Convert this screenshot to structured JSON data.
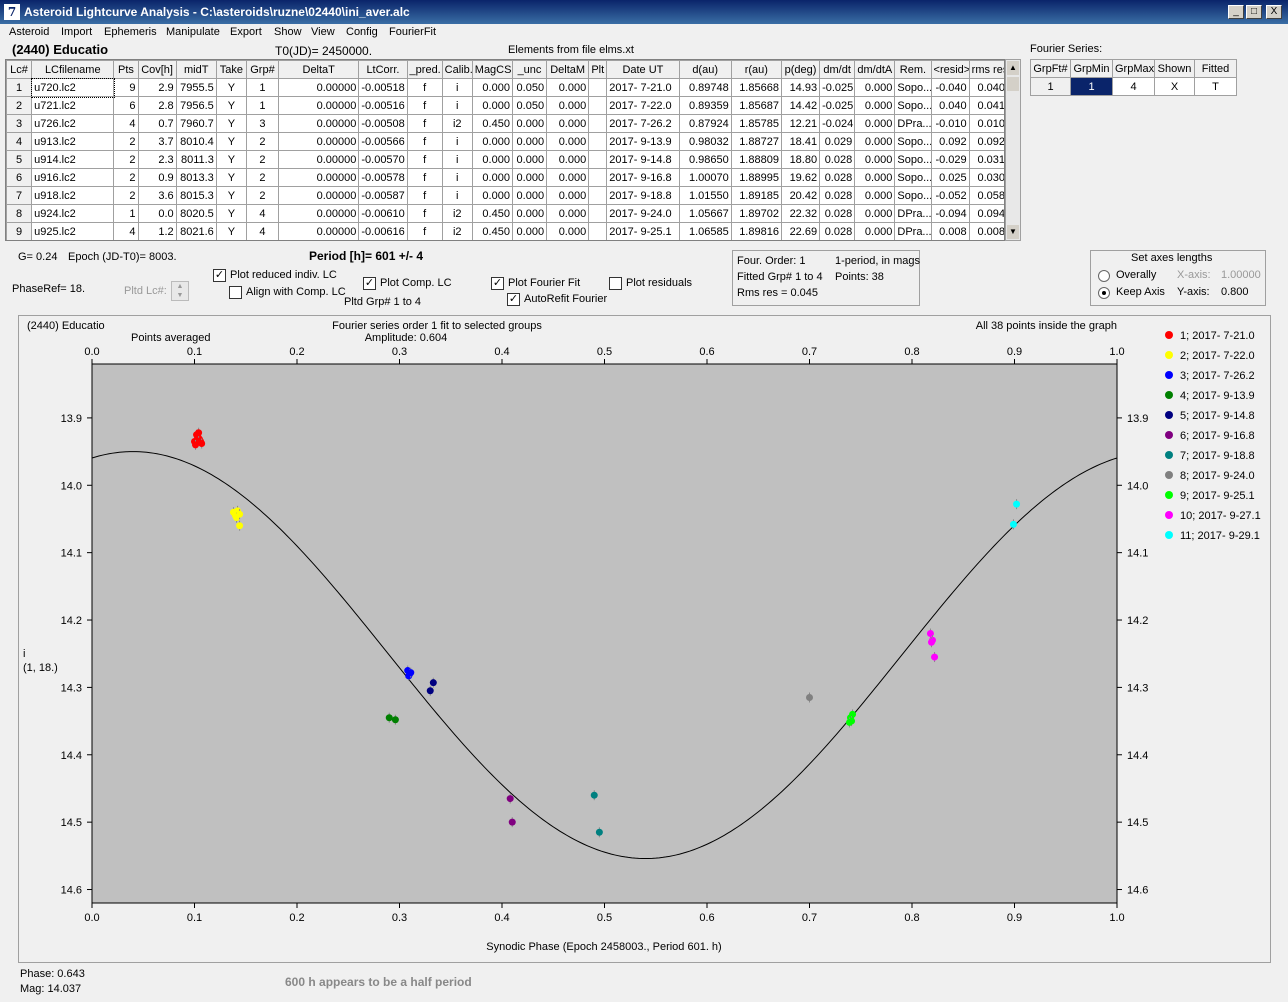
{
  "window": {
    "title": "Asteroid Lightcurve Analysis - C:\\asteroids\\ruzne\\02440\\ini_aver.alc",
    "min": "_",
    "max": "□",
    "close": "X"
  },
  "menu": [
    "Asteroid",
    "Import",
    "Ephemeris",
    "Manipulate",
    "Export",
    "Show",
    "View",
    "Config",
    "FourierFit"
  ],
  "header": {
    "asteroid": "(2440) Educatio",
    "t0": "T0(JD)= 2450000.",
    "elements": "Elements from file elms.xt"
  },
  "table": {
    "columns": [
      "Lc#",
      "LCfilename",
      "Pts",
      "Cov[h]",
      "midT",
      "Take",
      "Grp#",
      "DeltaT",
      "LtCorr.",
      "_pred.",
      "Calib.",
      "MagCS",
      "_unc",
      "DeltaM",
      "Plt",
      "Date UT",
      "d(au)",
      "r(au)",
      "p(deg)",
      "dm/dt",
      "dm/dtA",
      "Rem.",
      "<resid>",
      "rms res"
    ],
    "rows": [
      [
        "1",
        "u720.lc2",
        "9",
        "2.9",
        "7955.5",
        "Y",
        "1",
        "0.00000",
        "-0.00518",
        "f",
        "i",
        "0.000",
        "0.050",
        "0.000",
        "",
        "2017- 7-21.0",
        "0.89748",
        "1.85668",
        "14.93",
        "-0.025",
        "0.000",
        "Sopo...",
        "-0.040",
        "0.040"
      ],
      [
        "2",
        "u721.lc2",
        "6",
        "2.8",
        "7956.5",
        "Y",
        "1",
        "0.00000",
        "-0.00516",
        "f",
        "i",
        "0.000",
        "0.050",
        "0.000",
        "",
        "2017- 7-22.0",
        "0.89359",
        "1.85687",
        "14.42",
        "-0.025",
        "0.000",
        "Sopo...",
        "0.040",
        "0.041"
      ],
      [
        "3",
        "u726.lc2",
        "4",
        "0.7",
        "7960.7",
        "Y",
        "3",
        "0.00000",
        "-0.00508",
        "f",
        "i2",
        "0.450",
        "0.000",
        "0.000",
        "",
        "2017- 7-26.2",
        "0.87924",
        "1.85785",
        "12.21",
        "-0.024",
        "0.000",
        "DPra...",
        "-0.010",
        "0.010"
      ],
      [
        "4",
        "u913.lc2",
        "2",
        "3.7",
        "8010.4",
        "Y",
        "2",
        "0.00000",
        "-0.00566",
        "f",
        "i",
        "0.000",
        "0.000",
        "0.000",
        "",
        "2017- 9-13.9",
        "0.98032",
        "1.88727",
        "18.41",
        "0.029",
        "0.000",
        "Sopo...",
        "0.092",
        "0.092"
      ],
      [
        "5",
        "u914.lc2",
        "2",
        "2.3",
        "8011.3",
        "Y",
        "2",
        "0.00000",
        "-0.00570",
        "f",
        "i",
        "0.000",
        "0.000",
        "0.000",
        "",
        "2017- 9-14.8",
        "0.98650",
        "1.88809",
        "18.80",
        "0.028",
        "0.000",
        "Sopo...",
        "-0.029",
        "0.031"
      ],
      [
        "6",
        "u916.lc2",
        "2",
        "0.9",
        "8013.3",
        "Y",
        "2",
        "0.00000",
        "-0.00578",
        "f",
        "i",
        "0.000",
        "0.000",
        "0.000",
        "",
        "2017- 9-16.8",
        "1.00070",
        "1.88995",
        "19.62",
        "0.028",
        "0.000",
        "Sopo...",
        "0.025",
        "0.030"
      ],
      [
        "7",
        "u918.lc2",
        "2",
        "3.6",
        "8015.3",
        "Y",
        "2",
        "0.00000",
        "-0.00587",
        "f",
        "i",
        "0.000",
        "0.000",
        "0.000",
        "",
        "2017- 9-18.8",
        "1.01550",
        "1.89185",
        "20.42",
        "0.028",
        "0.000",
        "Sopo...",
        "-0.052",
        "0.058"
      ],
      [
        "8",
        "u924.lc2",
        "1",
        "0.0",
        "8020.5",
        "Y",
        "4",
        "0.00000",
        "-0.00610",
        "f",
        "i2",
        "0.450",
        "0.000",
        "0.000",
        "",
        "2017- 9-24.0",
        "1.05667",
        "1.89702",
        "22.32",
        "0.028",
        "0.000",
        "DPra...",
        "-0.094",
        "0.094"
      ],
      [
        "9",
        "u925.lc2",
        "4",
        "1.2",
        "8021.6",
        "Y",
        "4",
        "0.00000",
        "-0.00616",
        "f",
        "i2",
        "0.450",
        "0.000",
        "0.000",
        "",
        "2017- 9-25.1",
        "1.06585",
        "1.89816",
        "22.69",
        "0.028",
        "0.000",
        "DPra...",
        "0.008",
        "0.008"
      ]
    ]
  },
  "fourier_table": {
    "title": "Fourier Series:",
    "columns": [
      "GrpFt#",
      "GrpMin",
      "GrpMax",
      "Shown",
      "Fitted"
    ],
    "row": [
      "1",
      "1",
      "4",
      "X",
      "T"
    ]
  },
  "controls": {
    "g": "G= 0.24",
    "epoch": "Epoch (JD-T0)= 8003.",
    "period": "Period [h]= 601 +/- 4",
    "phaseref": "PhaseRef= 18.",
    "pltd_lc": "Pltd Lc#:",
    "plot_reduced": "Plot reduced indiv. LC",
    "align_comp": "Align with Comp. LC",
    "plot_comp": "Plot Comp. LC",
    "pltd_grp": "Pltd Grp#  1   to   4",
    "plot_fourier": "Plot Fourier Fit",
    "autorefit": "AutoRefit Fourier",
    "plot_resid": "Plot residuals",
    "check": "✓"
  },
  "fitinfo": {
    "order": "Four. Order:  1",
    "mode": "1-period, in mags",
    "fitted": "Fitted Grp# 1 to 4",
    "points": "Points: 38",
    "rms": "Rms res      = 0.045"
  },
  "axes_box": {
    "title": "Set axes lengths",
    "overally": "Overally",
    "keep": "Keep Axis",
    "xaxis_label": "X-axis:",
    "xaxis_val": "1.00000",
    "yaxis_label": "Y-axis:",
    "yaxis_val": "0.800"
  },
  "status": {
    "phase": "Phase:  0.643",
    "mag": "Mag:    14.037",
    "note": "600 h appears to be a half period"
  },
  "chart_data": {
    "type": "scatter",
    "title": "Fourier series order 1 fit to selected groups",
    "subtitle": "Amplitude: 0.604",
    "left_title": "(2440) Educatio",
    "left_subtitle": "Points averaged",
    "right_title": "All 38 points inside the graph",
    "xlabel": "Synodic Phase (Epoch 2458003., Period 601. h)",
    "ylabel": "i",
    "ylabel2": "(1, 18.)",
    "xlim": [
      0,
      1
    ],
    "ylim": [
      14.62,
      13.82
    ],
    "xticks": [
      0.0,
      0.1,
      0.2,
      0.3,
      0.4,
      0.5,
      0.6,
      0.7,
      0.8,
      0.9,
      1.0
    ],
    "yticks": [
      13.9,
      14.0,
      14.1,
      14.2,
      14.3,
      14.4,
      14.5,
      14.6
    ],
    "fit": {
      "mean": 14.252,
      "amplitude": 0.302,
      "min_phase": 0.54
    },
    "series": [
      {
        "name": "1; 2017- 7-21.0",
        "color": "#ff0000",
        "points": [
          [
            0.1,
            13.935
          ],
          [
            0.102,
            13.925
          ],
          [
            0.104,
            13.93
          ],
          [
            0.106,
            13.935
          ],
          [
            0.101,
            13.94
          ],
          [
            0.103,
            13.928
          ],
          [
            0.105,
            13.932
          ],
          [
            0.107,
            13.938
          ],
          [
            0.104,
            13.922
          ]
        ]
      },
      {
        "name": "2; 2017- 7-22.0",
        "color": "#ffff00",
        "points": [
          [
            0.138,
            14.04
          ],
          [
            0.14,
            14.045
          ],
          [
            0.142,
            14.038
          ],
          [
            0.141,
            14.048
          ],
          [
            0.144,
            14.043
          ],
          [
            0.144,
            14.06
          ]
        ]
      },
      {
        "name": "3; 2017- 7-26.2",
        "color": "#0000ff",
        "points": [
          [
            0.308,
            14.275
          ],
          [
            0.31,
            14.28
          ],
          [
            0.309,
            14.283
          ],
          [
            0.311,
            14.278
          ]
        ]
      },
      {
        "name": "4; 2017- 9-13.9",
        "color": "#008000",
        "points": [
          [
            0.29,
            14.345
          ],
          [
            0.296,
            14.348
          ]
        ]
      },
      {
        "name": "5; 2017- 9-14.8",
        "color": "#000080",
        "points": [
          [
            0.33,
            14.305
          ],
          [
            0.333,
            14.293
          ]
        ]
      },
      {
        "name": "6; 2017- 9-16.8",
        "color": "#800080",
        "points": [
          [
            0.408,
            14.465
          ],
          [
            0.41,
            14.5
          ]
        ]
      },
      {
        "name": "7; 2017- 9-18.8",
        "color": "#008080",
        "points": [
          [
            0.49,
            14.46
          ],
          [
            0.495,
            14.515
          ]
        ]
      },
      {
        "name": "8; 2017- 9-24.0",
        "color": "#808080",
        "points": [
          [
            0.7,
            14.315
          ]
        ]
      },
      {
        "name": "9; 2017- 9-25.1",
        "color": "#00ff00",
        "points": [
          [
            0.74,
            14.345
          ],
          [
            0.742,
            14.34
          ],
          [
            0.741,
            14.35
          ],
          [
            0.739,
            14.352
          ]
        ]
      },
      {
        "name": "10; 2017- 9-27.1",
        "color": "#ff00ff",
        "points": [
          [
            0.818,
            14.22
          ],
          [
            0.82,
            14.23
          ],
          [
            0.819,
            14.233
          ],
          [
            0.822,
            14.255
          ]
        ]
      },
      {
        "name": "11; 2017- 9-29.1",
        "color": "#00ffff",
        "points": [
          [
            0.902,
            14.028
          ],
          [
            0.899,
            14.058
          ]
        ]
      }
    ]
  }
}
